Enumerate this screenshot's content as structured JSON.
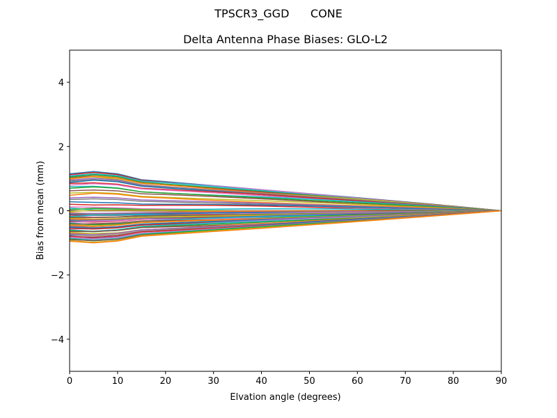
{
  "figure": {
    "suptitle": "TPSCR3_GGD      CONE",
    "title": "Delta Antenna Phase Biases: GLO-L2"
  },
  "chart_data": {
    "type": "line",
    "title": "Delta Antenna Phase Biases: GLO-L2",
    "suptitle": "TPSCR3_GGD      CONE",
    "xlabel": "Elvation angle (degrees)",
    "ylabel": "Bias from mean (mm)",
    "xlim": [
      0,
      90
    ],
    "ylim": [
      -5,
      5
    ],
    "xticks": [
      0,
      10,
      20,
      30,
      40,
      50,
      60,
      70,
      80,
      90
    ],
    "yticks": [
      -4,
      -2,
      0,
      2,
      4
    ],
    "ytick_labels": [
      "−4",
      "−2",
      "0",
      "2",
      "4"
    ],
    "grid": false,
    "legend": null,
    "x": [
      0,
      5,
      10,
      15,
      20,
      25,
      30,
      35,
      40,
      45,
      50,
      55,
      60,
      65,
      70,
      75,
      80,
      85,
      90
    ],
    "colors": [
      "#1f77b4",
      "#ff7f0e",
      "#2ca02c",
      "#d62728",
      "#9467bd",
      "#8c564b",
      "#e377c2",
      "#7f7f7f",
      "#bcbd22",
      "#17becf"
    ],
    "note": "Many series (approx. 80+) fanning from roughly -0.95..1.15 mm at 0 deg and converging to 0 at 90 deg; values below are representative series.",
    "series_start_values": [
      1.15,
      1.12,
      1.1,
      1.08,
      1.05,
      1.02,
      1.0,
      0.98,
      0.95,
      0.92,
      0.88,
      0.85,
      0.8,
      0.75,
      0.7,
      0.62,
      0.55,
      0.48,
      0.4,
      0.35,
      0.28,
      0.2,
      0.12,
      0.08,
      0.04,
      0.0,
      -0.03,
      -0.06,
      -0.08,
      -0.1,
      -0.12,
      -0.14,
      -0.16,
      -0.18,
      -0.2,
      -0.22,
      -0.24,
      -0.26,
      -0.28,
      -0.3,
      -0.32,
      -0.34,
      -0.36,
      -0.38,
      -0.4,
      -0.42,
      -0.44,
      -0.46,
      -0.48,
      -0.5,
      -0.52,
      -0.55,
      -0.58,
      -0.6,
      -0.62,
      -0.65,
      -0.68,
      -0.7,
      -0.72,
      -0.75,
      -0.78,
      -0.8,
      -0.83,
      -0.86,
      -0.88,
      -0.9,
      -0.93,
      -0.95
    ],
    "series_peak_factor_at_5deg": 1.06
  }
}
